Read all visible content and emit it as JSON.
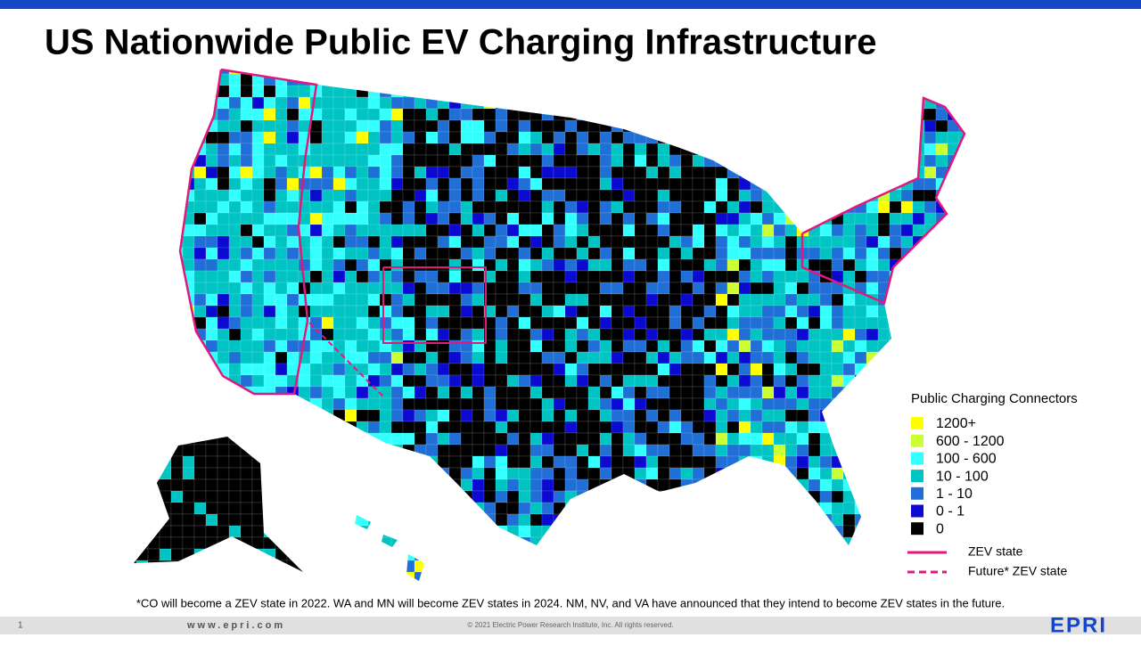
{
  "header": {
    "title": "US Nationwide Public EV Charging Infrastructure"
  },
  "legend": {
    "title": "Public Charging Connectors",
    "items": [
      {
        "label": "1200+",
        "color": "#ffff00"
      },
      {
        "label": "600 - 1200",
        "color": "#ccff33"
      },
      {
        "label": "100 - 600",
        "color": "#33ffff"
      },
      {
        "label": "10 - 100",
        "color": "#00c4c4"
      },
      {
        "label": "1 - 10",
        "color": "#1f6fd6"
      },
      {
        "label": "0 - 1",
        "color": "#0a0ad0"
      },
      {
        "label": "0",
        "color": "#000000"
      }
    ],
    "lines": [
      {
        "label": "ZEV state",
        "color": "#e0197d",
        "style": "solid"
      },
      {
        "label": "Future* ZEV state",
        "color": "#e0197d",
        "style": "dashed"
      }
    ]
  },
  "footnote": "*CO will become a ZEV state in 2022. WA and MN will become ZEV states in 2024. NM, NV, and VA have announced that they intend to become ZEV states in the future.",
  "footer": {
    "page": "1",
    "website": "www.epri.com",
    "copyright": "© 2021 Electric Power Research Institute, Inc. All rights reserved.",
    "logo": "EPRI"
  }
}
